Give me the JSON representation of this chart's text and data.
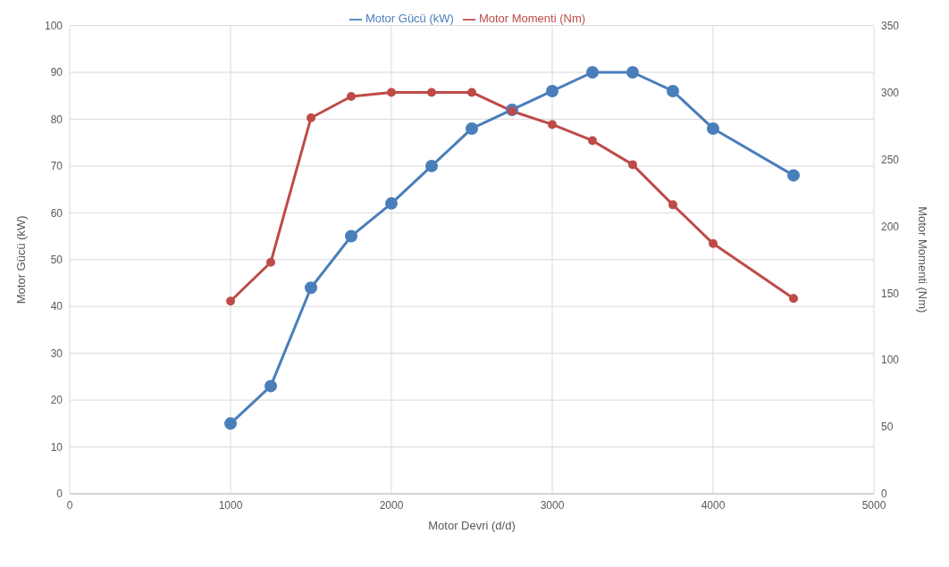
{
  "chart_data": {
    "type": "line",
    "xlabel": "Motor Devri (d/d)",
    "ylabel": "Motor Gücü (kW)",
    "y2label": "Motor Momenti (Nm)",
    "x": [
      1000,
      1250,
      1500,
      1750,
      2000,
      2250,
      2500,
      2750,
      3000,
      3250,
      3500,
      3750,
      4000,
      4500
    ],
    "series": [
      {
        "name": "Motor Gücü (kW)",
        "color": "#4a7ebb",
        "values": [
          15,
          23,
          44,
          55,
          62,
          70,
          78,
          82,
          86,
          90,
          90,
          86,
          78,
          68
        ]
      },
      {
        "name": "Motor Momenti (Nm)",
        "color": "#be4b48",
        "axis": "y2",
        "values": [
          144,
          173,
          281,
          297,
          300,
          300,
          300,
          286,
          276,
          264,
          246,
          216,
          187,
          146
        ]
      }
    ],
    "xlim": [
      0,
      5000
    ],
    "xticks": [
      0,
      1000,
      2000,
      3000,
      4000,
      5000
    ],
    "ylim": [
      0,
      100
    ],
    "yticks": [
      0,
      10,
      20,
      30,
      40,
      50,
      60,
      70,
      80,
      90,
      100
    ],
    "y2lim": [
      0,
      350
    ],
    "y2ticks": [
      0,
      50,
      100,
      150,
      200,
      250,
      300,
      350
    ],
    "grid": true,
    "legend": "top",
    "marker": "circle",
    "line_style": "solid"
  }
}
